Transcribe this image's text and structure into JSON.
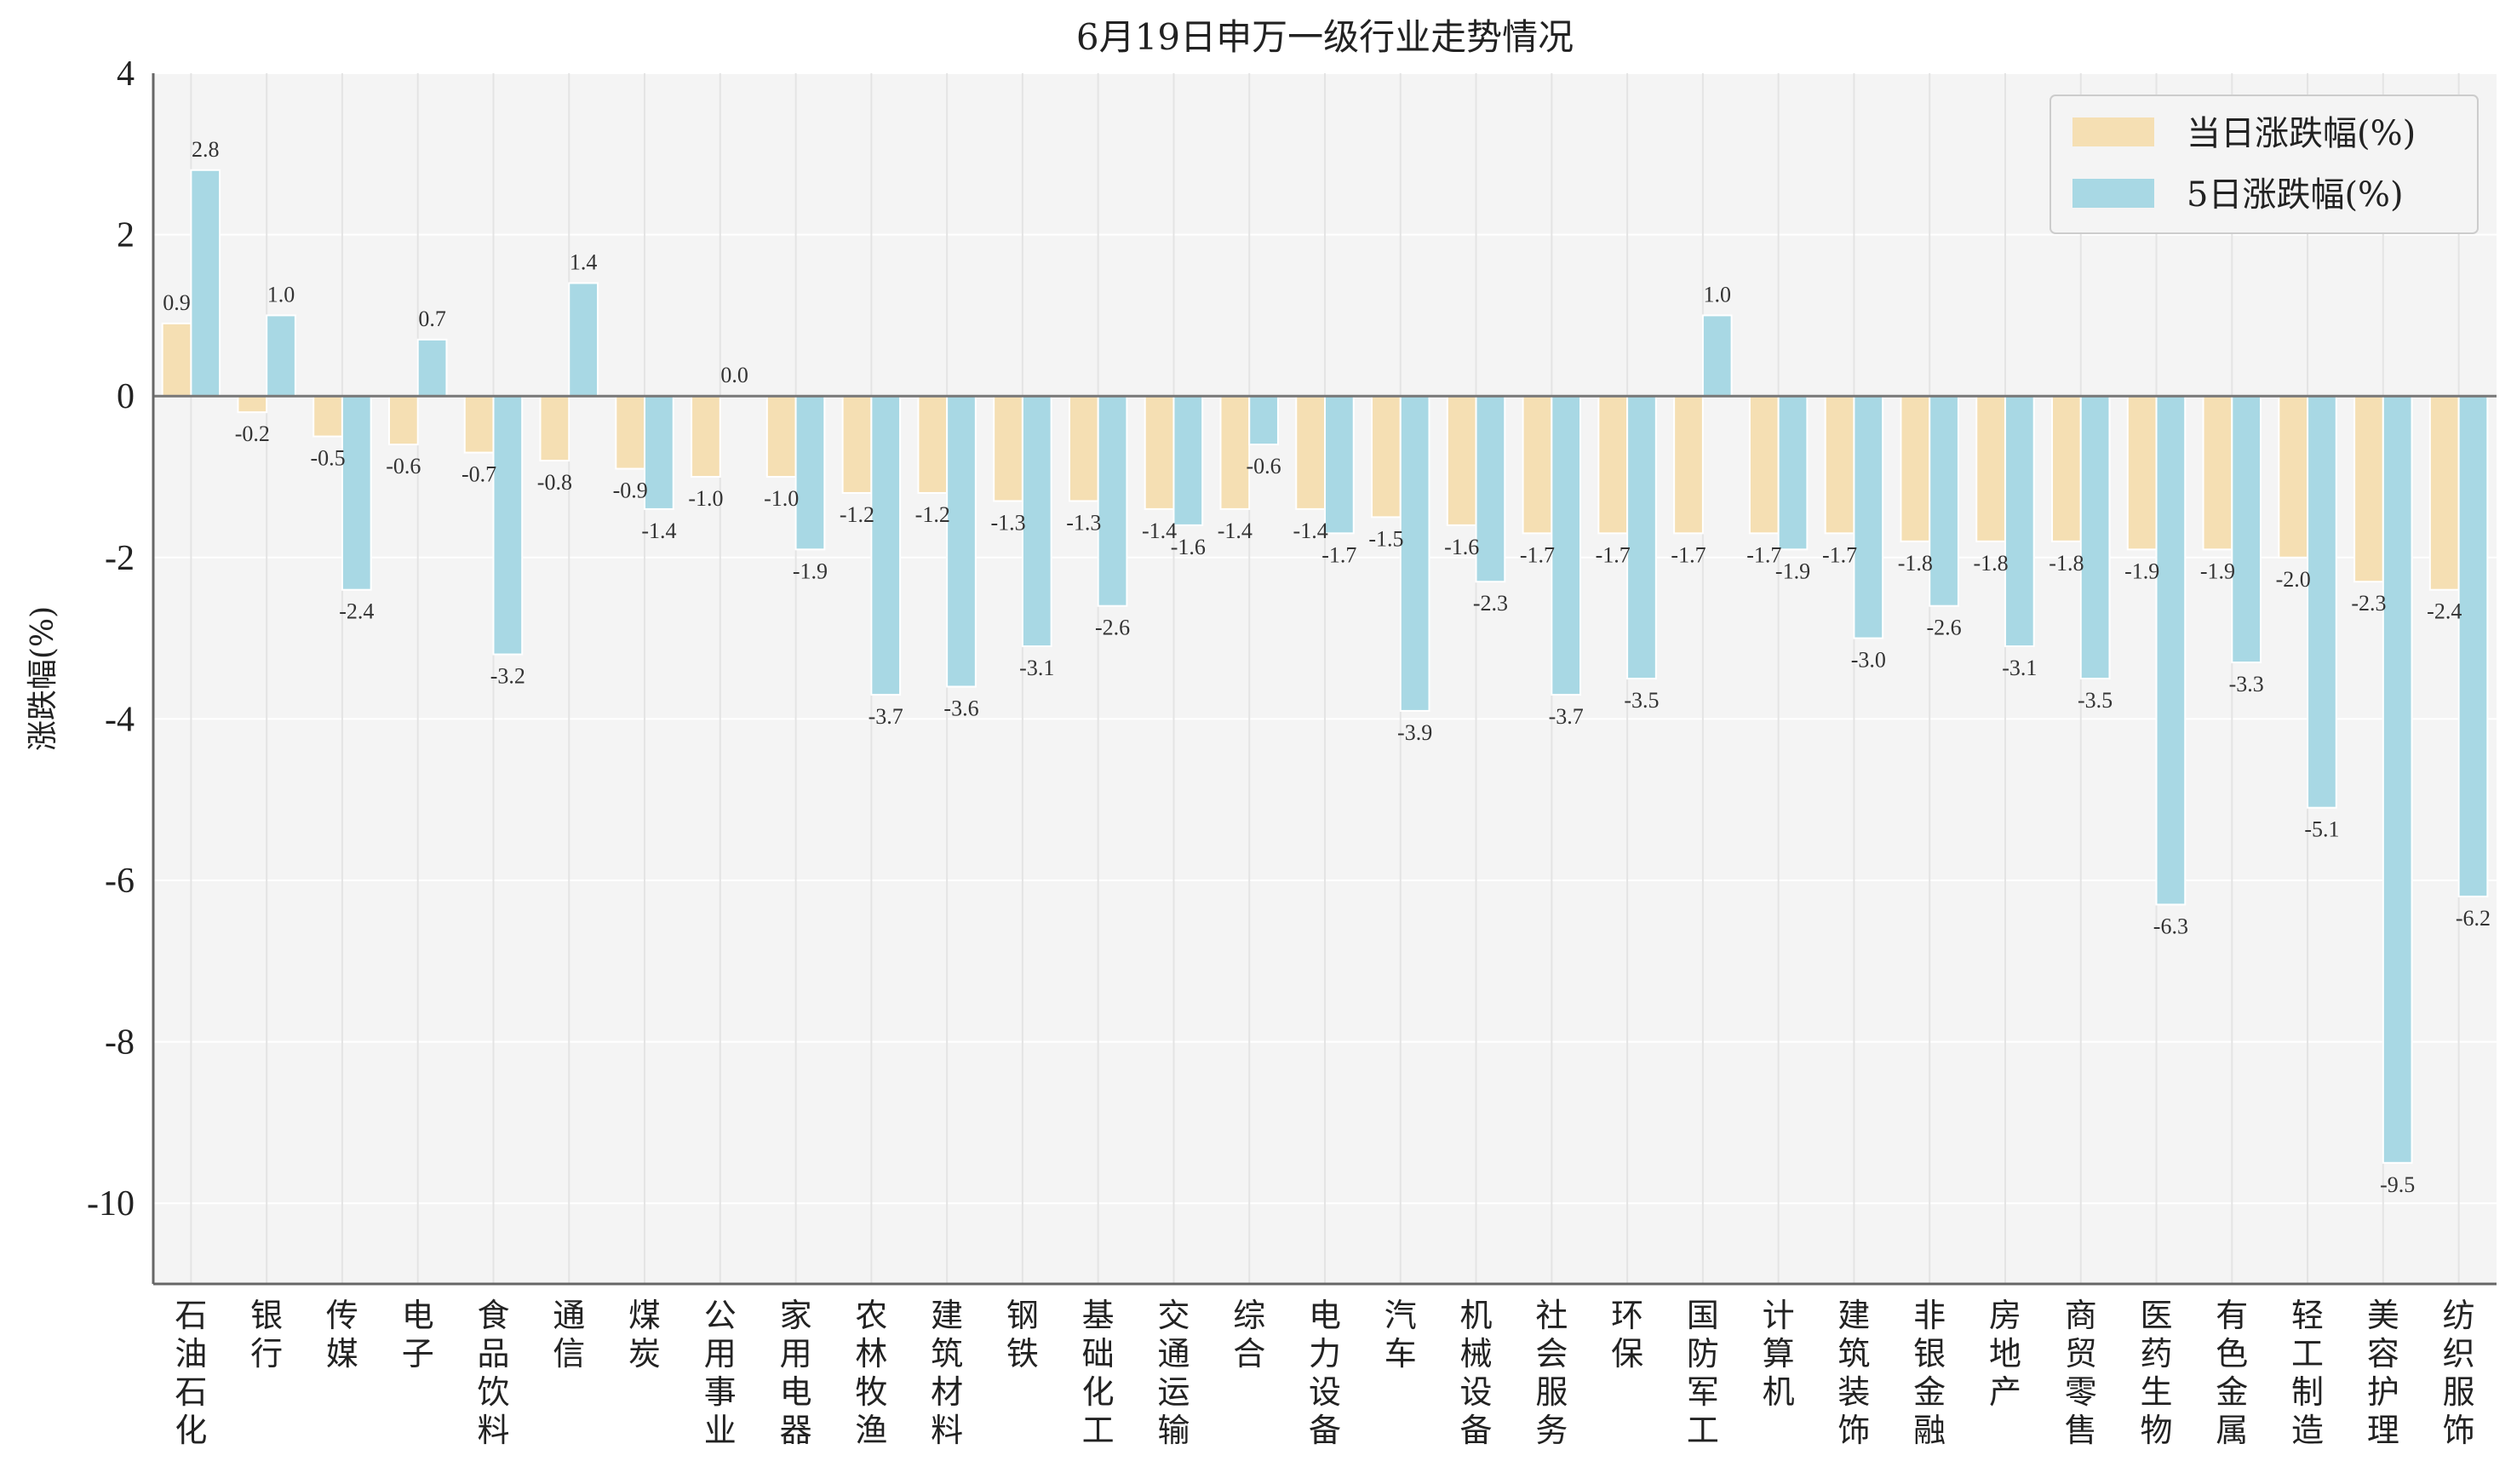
{
  "chart_data": {
    "type": "bar",
    "title": "6月19日申万一级行业走势情况",
    "xlabel": "",
    "ylabel": "涨跌幅(%)",
    "ylim": [
      -11,
      4
    ],
    "yticks": [
      4,
      2,
      0,
      -2,
      -4,
      -6,
      -8,
      -10
    ],
    "grid": true,
    "legend_position": "top-right",
    "categories": [
      "石油石化",
      "银行",
      "传媒",
      "电子",
      "食品饮料",
      "通信",
      "煤炭",
      "公用事业",
      "家用电器",
      "农林牧渔",
      "建筑材料",
      "钢铁",
      "基础化工",
      "交通运输",
      "综合",
      "电力设备",
      "汽车",
      "机械设备",
      "社会服务",
      "环保",
      "国防军工",
      "计算机",
      "建筑装饰",
      "非银金融",
      "房地产",
      "商贸零售",
      "医药生物",
      "有色金属",
      "轻工制造",
      "美容护理",
      "纺织服饰"
    ],
    "series": [
      {
        "name": "当日涨跌幅(%)",
        "color": "#f5dfb3",
        "values": [
          0.9,
          -0.2,
          -0.5,
          -0.6,
          -0.7,
          -0.8,
          -0.9,
          -1.0,
          -1.0,
          -1.2,
          -1.2,
          -1.3,
          -1.3,
          -1.4,
          -1.4,
          -1.4,
          -1.5,
          -1.6,
          -1.7,
          -1.7,
          -1.7,
          -1.7,
          -1.7,
          -1.8,
          -1.8,
          -1.8,
          -1.9,
          -1.9,
          -2.0,
          -2.3,
          -2.4
        ]
      },
      {
        "name": "5日涨跌幅(%)",
        "color": "#a8d8e4",
        "values": [
          2.8,
          1.0,
          -2.4,
          0.7,
          -3.2,
          1.4,
          -1.4,
          0.0,
          -1.9,
          -3.7,
          -3.6,
          -3.1,
          -2.6,
          -1.6,
          -0.6,
          -1.7,
          -3.9,
          -2.3,
          -3.7,
          -3.5,
          1.0,
          -1.9,
          -3.0,
          -2.6,
          -3.1,
          -3.5,
          -6.3,
          -3.3,
          -5.1,
          -9.5,
          -6.2
        ]
      }
    ]
  }
}
